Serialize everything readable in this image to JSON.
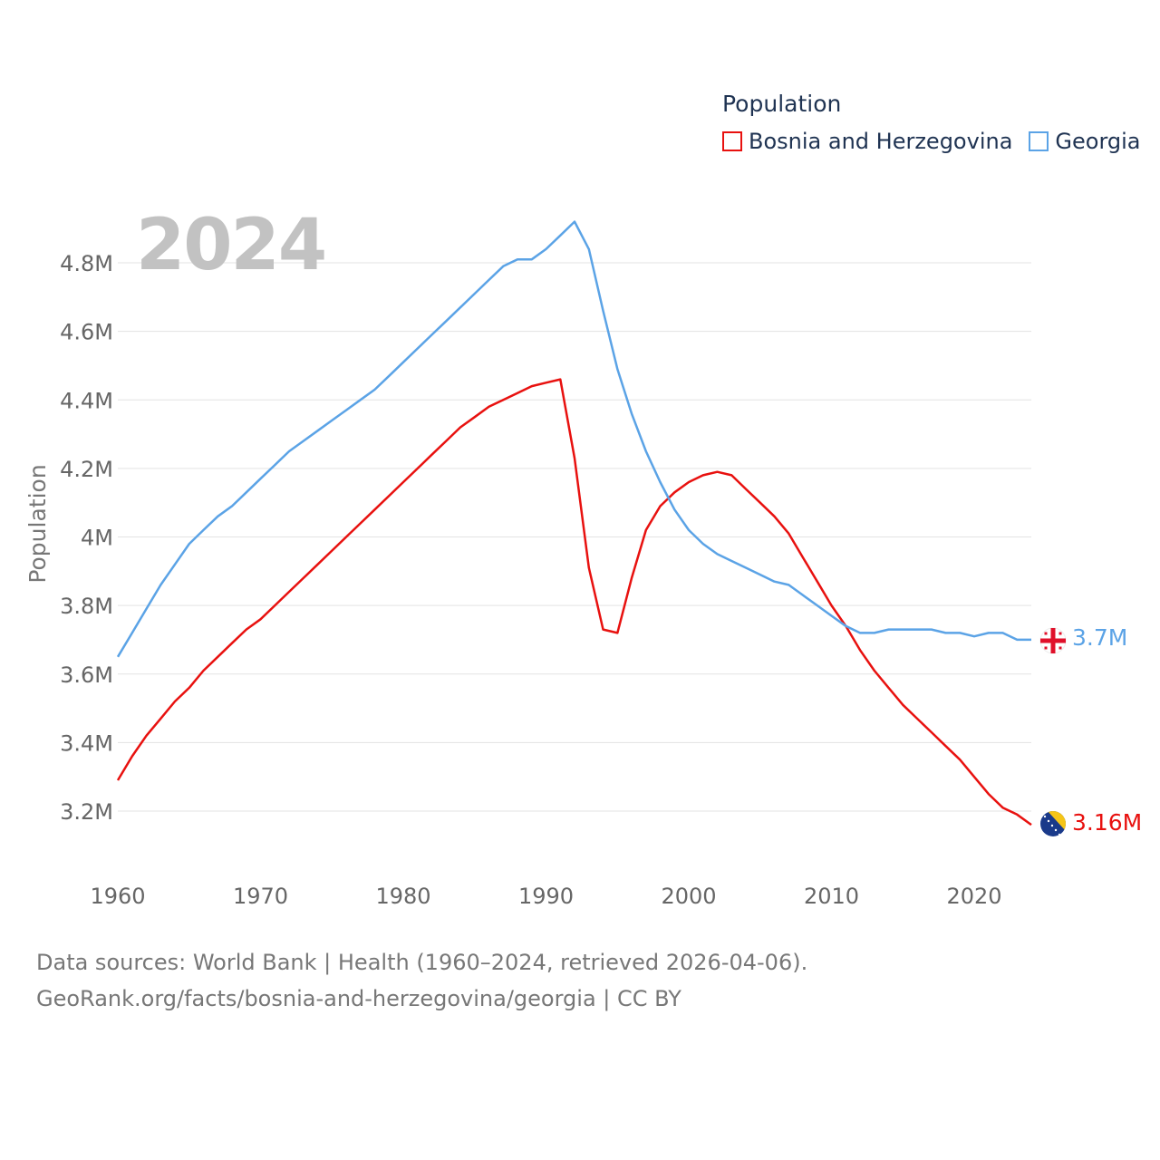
{
  "year_label": "2024",
  "legend": {
    "title": "Population",
    "items": [
      {
        "label": "Bosnia and Herzegovina",
        "color": "#e8110f"
      },
      {
        "label": "Georgia",
        "color": "#5ba3e6"
      }
    ]
  },
  "footer": {
    "line1": "Data sources: World Bank | Health (1960–2024, retrieved 2026-04-06).",
    "line2": "GeoRank.org/facts/bosnia-and-herzegovina/georgia | CC BY"
  },
  "chart_data": {
    "type": "line",
    "title": "",
    "xlabel": "",
    "ylabel": "Population",
    "xlim": [
      1960,
      2024
    ],
    "ylim": [
      3.08,
      4.98
    ],
    "x_ticks": [
      1960,
      1970,
      1980,
      1990,
      2000,
      2010,
      2020
    ],
    "x_tick_labels": [
      "1960",
      "1970",
      "1980",
      "1990",
      "2000",
      "2010",
      "2020"
    ],
    "y_ticks": [
      3.2,
      3.4,
      3.6,
      3.8,
      4.0,
      4.2,
      4.4,
      4.6,
      4.8
    ],
    "y_tick_labels": [
      "3.2M",
      "3.4M",
      "3.6M",
      "3.8M",
      "4M",
      "4.2M",
      "4.4M",
      "4.6M",
      "4.8M"
    ],
    "grid": true,
    "x": [
      1960,
      1961,
      1962,
      1963,
      1964,
      1965,
      1966,
      1967,
      1968,
      1969,
      1970,
      1971,
      1972,
      1973,
      1974,
      1975,
      1976,
      1977,
      1978,
      1979,
      1980,
      1981,
      1982,
      1983,
      1984,
      1985,
      1986,
      1987,
      1988,
      1989,
      1990,
      1991,
      1992,
      1993,
      1994,
      1995,
      1996,
      1997,
      1998,
      1999,
      2000,
      2001,
      2002,
      2003,
      2004,
      2005,
      2006,
      2007,
      2008,
      2009,
      2010,
      2011,
      2012,
      2013,
      2014,
      2015,
      2016,
      2017,
      2018,
      2019,
      2020,
      2021,
      2022,
      2023,
      2024
    ],
    "series": [
      {
        "name": "Bosnia and Herzegovina",
        "color": "#e8110f",
        "end_label": "3.16M",
        "values": [
          3.29,
          3.36,
          3.42,
          3.47,
          3.52,
          3.56,
          3.61,
          3.65,
          3.69,
          3.73,
          3.76,
          3.8,
          3.84,
          3.88,
          3.92,
          3.96,
          4.0,
          4.04,
          4.08,
          4.12,
          4.16,
          4.2,
          4.24,
          4.28,
          4.32,
          4.35,
          4.38,
          4.4,
          4.42,
          4.44,
          4.45,
          4.46,
          4.23,
          3.91,
          3.73,
          3.72,
          3.88,
          4.02,
          4.09,
          4.13,
          4.16,
          4.18,
          4.19,
          4.18,
          4.14,
          4.1,
          4.06,
          4.01,
          3.94,
          3.87,
          3.8,
          3.74,
          3.67,
          3.61,
          3.56,
          3.51,
          3.47,
          3.43,
          3.39,
          3.35,
          3.3,
          3.25,
          3.21,
          3.19,
          3.16
        ]
      },
      {
        "name": "Georgia",
        "color": "#5ba3e6",
        "end_label": "3.7M",
        "values": [
          3.65,
          3.72,
          3.79,
          3.86,
          3.92,
          3.98,
          4.02,
          4.06,
          4.09,
          4.13,
          4.17,
          4.21,
          4.25,
          4.28,
          4.31,
          4.34,
          4.37,
          4.4,
          4.43,
          4.47,
          4.51,
          4.55,
          4.59,
          4.63,
          4.67,
          4.71,
          4.75,
          4.79,
          4.81,
          4.81,
          4.84,
          4.88,
          4.92,
          4.84,
          4.66,
          4.49,
          4.36,
          4.25,
          4.16,
          4.08,
          4.02,
          3.98,
          3.95,
          3.93,
          3.91,
          3.89,
          3.87,
          3.86,
          3.83,
          3.8,
          3.77,
          3.74,
          3.72,
          3.72,
          3.73,
          3.73,
          3.73,
          3.73,
          3.72,
          3.72,
          3.71,
          3.72,
          3.72,
          3.7,
          3.7
        ]
      }
    ]
  }
}
